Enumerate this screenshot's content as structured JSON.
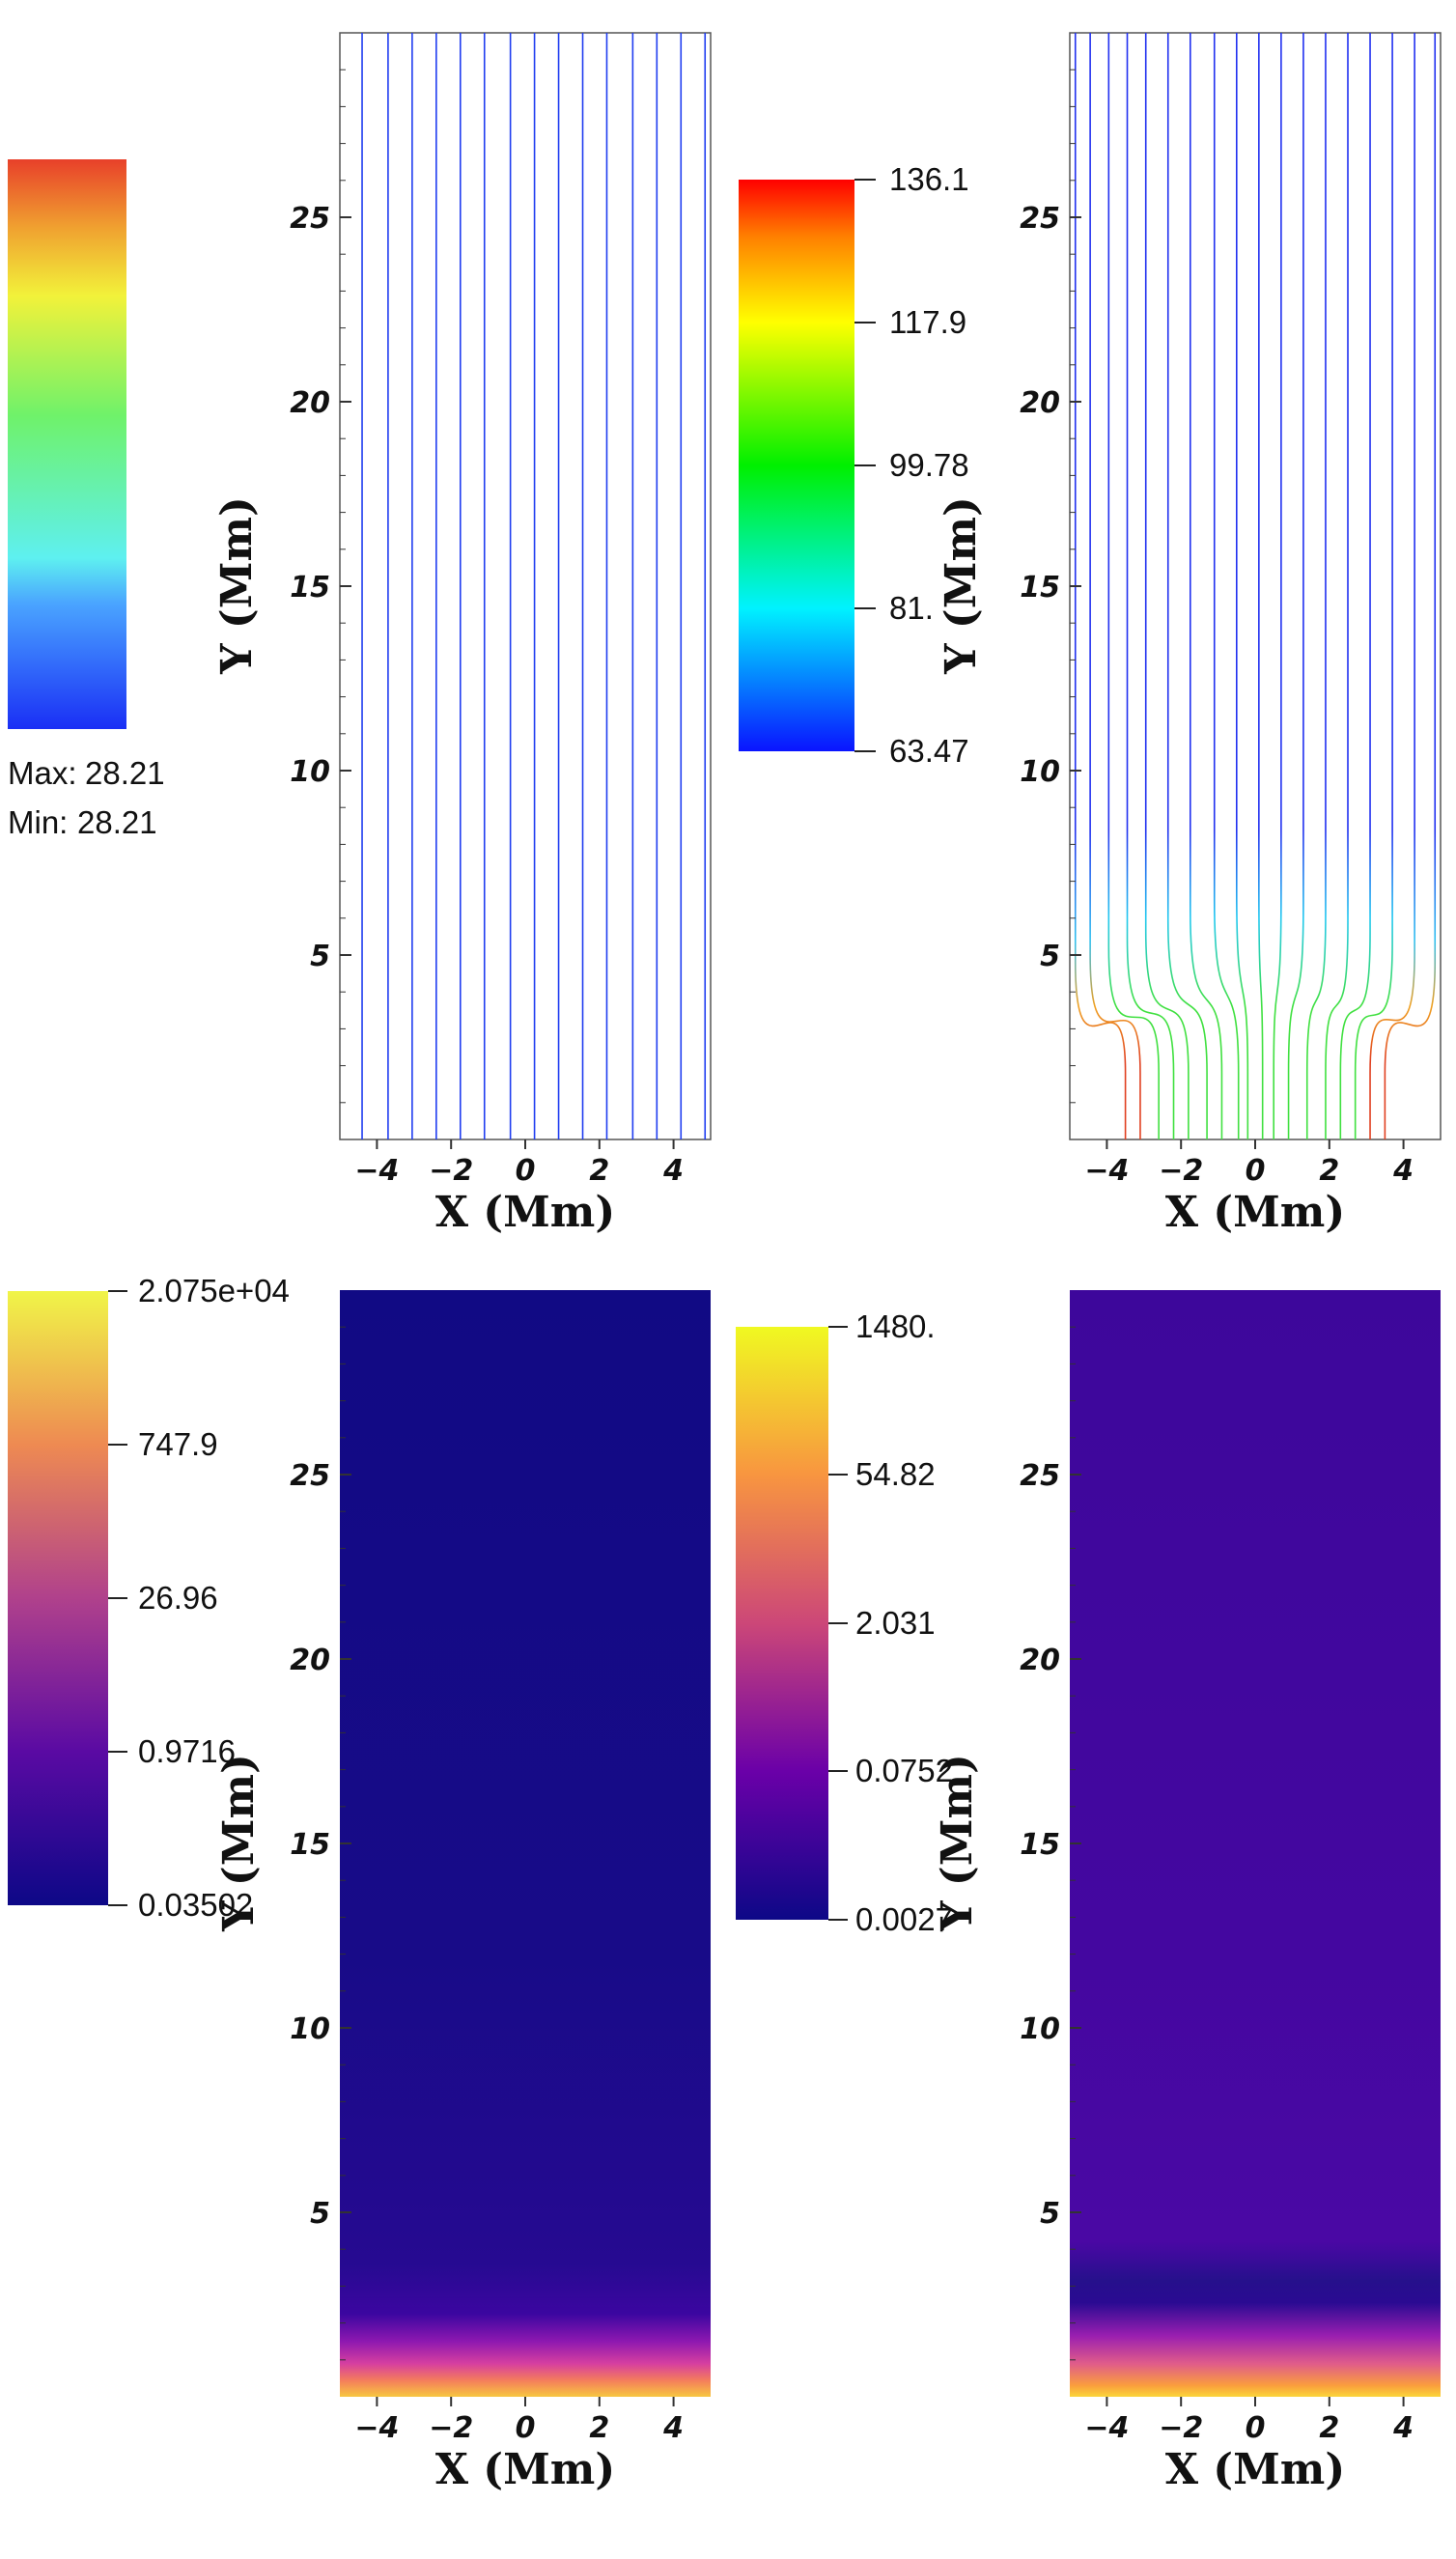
{
  "chart_data": [
    {
      "type": "streamlines",
      "panel": "top-left",
      "xlabel": "X (Mm)",
      "ylabel": "Y (Mm)",
      "xlim": [
        -5,
        5
      ],
      "ylim": [
        0,
        30
      ],
      "xticks": [
        "−4",
        "−2",
        "0",
        "2",
        "4"
      ],
      "yticks": [
        "5",
        "10",
        "15",
        "20",
        "25"
      ],
      "line_x": [
        -4.4,
        -3.7,
        -3.05,
        -2.4,
        -1.75,
        -1.1,
        -0.4,
        0.25,
        0.9,
        1.55,
        2.2,
        2.9,
        3.55,
        4.2,
        4.85
      ],
      "line_color": "#1f3df0",
      "colorbar": {
        "colormap": "rainbow",
        "position": "left",
        "stats": [
          {
            "label": "Max:",
            "value": "28.21"
          },
          {
            "label": "Min:",
            "value": "28.21"
          }
        ]
      }
    },
    {
      "type": "streamlines",
      "panel": "top-right",
      "xlabel": "X (Mm)",
      "ylabel": "Y (Mm)",
      "xlim": [
        -5,
        5
      ],
      "ylim": [
        0,
        30
      ],
      "xticks": [
        "−4",
        "−2",
        "0",
        "2",
        "4"
      ],
      "yticks": [
        "5",
        "10",
        "15",
        "20",
        "25"
      ],
      "line_top_x": [
        -4.85,
        -4.45,
        -3.95,
        -3.45,
        -2.95,
        -2.35,
        -1.75,
        -1.1,
        -0.5,
        0.1,
        0.7,
        1.3,
        1.9,
        2.5,
        3.1,
        3.7,
        4.3,
        4.85
      ],
      "line_bottom_x": [
        -3.5,
        -3.1,
        -2.6,
        -2.2,
        -1.8,
        -1.3,
        -0.9,
        -0.45,
        -0.2,
        0.2,
        0.5,
        0.9,
        1.4,
        1.9,
        2.3,
        2.7,
        3.1,
        3.5
      ],
      "colorbar": {
        "colormap": "rainbow",
        "position": "left",
        "ticks": [
          "136.1",
          "117.9",
          "99.78",
          "81.",
          "63.47"
        ],
        "range": [
          63.47,
          136.1
        ]
      }
    },
    {
      "type": "heatmap",
      "panel": "bottom-left",
      "xlabel": "X (Mm)",
      "ylabel": "Y (Mm)",
      "xlim": [
        -5,
        5
      ],
      "ylim": [
        0,
        30
      ],
      "xticks": [
        "−4",
        "−2",
        "0",
        "2",
        "4"
      ],
      "yticks": [
        "5",
        "10",
        "15",
        "20",
        "25"
      ],
      "colormap": "plasma",
      "log_scale": true,
      "colorbar": {
        "position": "left",
        "ticks": [
          "2.075e+04",
          "747.9",
          "26.96",
          "0.9716",
          "0.03502"
        ],
        "range": [
          0.03502,
          20750
        ]
      }
    },
    {
      "type": "heatmap",
      "panel": "bottom-right",
      "xlabel": "X (Mm)",
      "ylabel": "Y (Mm)",
      "xlim": [
        -5,
        5
      ],
      "ylim": [
        0,
        30
      ],
      "xticks": [
        "−4",
        "−2",
        "0",
        "2",
        "4"
      ],
      "yticks": [
        "5",
        "10",
        "15",
        "20",
        "25"
      ],
      "colormap": "plasma",
      "log_scale": true,
      "colorbar": {
        "position": "left",
        "ticks": [
          "1480.",
          "54.82",
          "2.031",
          "0.0752",
          "0.0027"
        ],
        "range": [
          0.0027,
          1480
        ]
      }
    }
  ]
}
